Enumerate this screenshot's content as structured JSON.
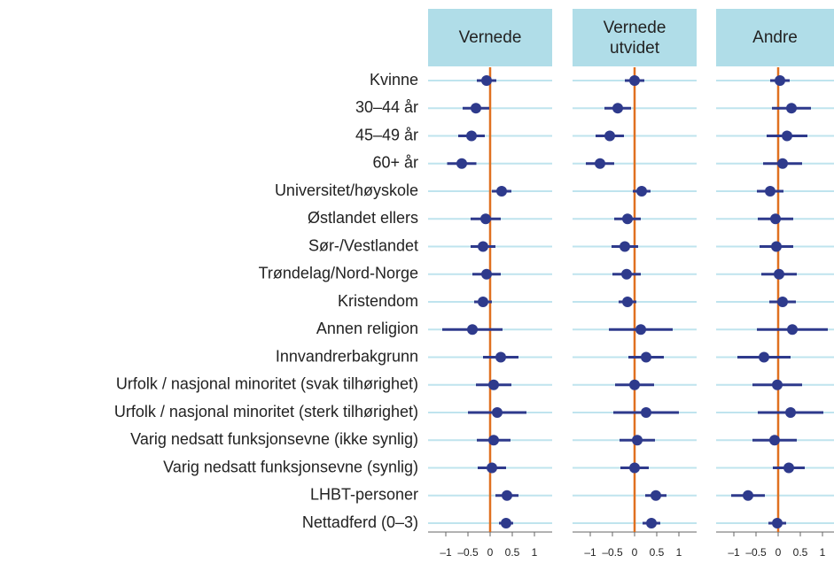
{
  "chart_data": [
    {
      "type": "dot",
      "title": "Vernede",
      "categories": [
        "Kvinne",
        "30–44 år",
        "45–49 år",
        "60+ år",
        "Universitet/høyskole",
        "Østlandet ellers",
        "Sør-/Vestlandet",
        "Trøndelag/Nord-Norge",
        "Kristendom",
        "Annen religion",
        "Innvandrerbakgrunn",
        "Urfolk / nasjonal minoritet (svak tilhørighet)",
        "Urfolk / nasjonal minoritet (sterk tilhørighet)",
        "Varig nedsatt funksjonsevne (ikke synlig)",
        "Varig nedsatt funksjonsevne (synlig)",
        "LHBT-personer",
        "Nettadferd (0–3)"
      ],
      "values": [
        -0.08,
        -0.32,
        -0.42,
        -0.64,
        0.26,
        -0.1,
        -0.16,
        -0.08,
        -0.16,
        -0.4,
        0.24,
        0.08,
        0.16,
        0.08,
        0.04,
        0.38,
        0.36
      ],
      "errors": [
        0.22,
        0.3,
        0.3,
        0.33,
        0.22,
        0.34,
        0.28,
        0.32,
        0.2,
        0.68,
        0.4,
        0.4,
        0.66,
        0.38,
        0.32,
        0.26,
        0.16
      ],
      "color": "#2e3a8c",
      "xlim": [
        -1.4,
        1.4
      ],
      "xticks": [
        {
          "value": -1,
          "label": "–1"
        },
        {
          "value": -0.5,
          "label": "–0.5"
        },
        0,
        0.5,
        1
      ]
    },
    {
      "type": "dot",
      "title": "Vernede utvidet",
      "values": [
        0,
        -0.38,
        -0.56,
        -0.78,
        0.16,
        -0.16,
        -0.22,
        -0.18,
        -0.16,
        0.14,
        0.26,
        0,
        0.26,
        0.06,
        0,
        0.48,
        0.38
      ],
      "errors": [
        0.22,
        0.3,
        0.32,
        0.32,
        0.2,
        0.3,
        0.3,
        0.32,
        0.2,
        0.72,
        0.4,
        0.44,
        0.74,
        0.4,
        0.32,
        0.24,
        0.2
      ],
      "color": "#2e3a8c",
      "xlim": [
        -1.4,
        1.4
      ],
      "xticks": [
        {
          "value": -1,
          "label": "–1"
        },
        {
          "value": -0.5,
          "label": "–0.5"
        },
        0,
        0.5,
        1
      ]
    },
    {
      "type": "dot",
      "title": "Andre",
      "values": [
        0.04,
        0.3,
        0.2,
        0.1,
        -0.18,
        -0.06,
        -0.04,
        0.02,
        0.1,
        0.32,
        -0.32,
        -0.02,
        0.28,
        -0.08,
        0.24,
        -0.68,
        -0.02
      ],
      "errors": [
        0.22,
        0.44,
        0.46,
        0.44,
        0.3,
        0.4,
        0.38,
        0.4,
        0.3,
        0.8,
        0.6,
        0.56,
        0.74,
        0.5,
        0.36,
        0.38,
        0.2
      ],
      "color": "#2e3a8c",
      "xlim": [
        -1.4,
        1.26
      ],
      "xticks": [
        {
          "value": -1,
          "label": "–1"
        },
        {
          "value": -0.5,
          "label": "–0.5"
        },
        0,
        0.5,
        1
      ]
    }
  ]
}
